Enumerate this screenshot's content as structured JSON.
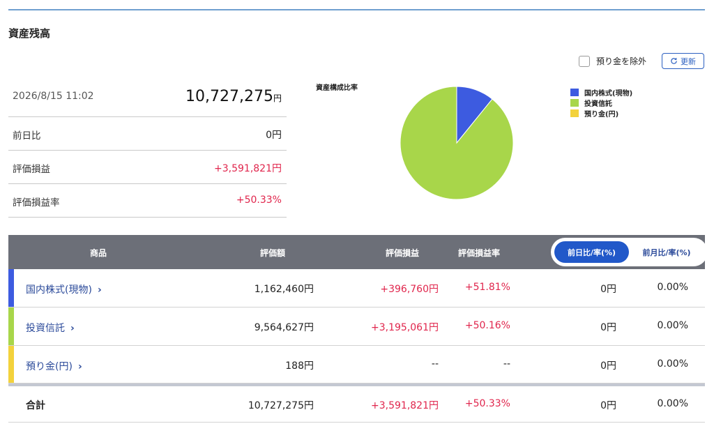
{
  "page": {
    "title": "資産残高"
  },
  "controls": {
    "exclude_label": "預り金を除外",
    "refresh_label": "更新"
  },
  "summary": {
    "timestamp": "2026/8/15 11:02",
    "total_value": "10,727,275",
    "total_unit": "円",
    "rows": [
      {
        "label": "前日比",
        "value": "0円"
      },
      {
        "label": "評価損益",
        "value": "+3,591,821円"
      },
      {
        "label": "評価損益率",
        "value": "+50.33%"
      }
    ]
  },
  "chart_data": {
    "type": "pie",
    "title": "資産構成比率",
    "legend_position": "right",
    "slices": [
      {
        "label": "国内株式(現物)",
        "value": 1162460,
        "color": "#3d5be0"
      },
      {
        "label": "投資信託",
        "value": 9564627,
        "color": "#a8d64a"
      },
      {
        "label": "預り金(円)",
        "value": 188,
        "color": "#f3d23c"
      }
    ]
  },
  "table": {
    "headers": {
      "product": "商品",
      "value": "評価額",
      "pl": "評価損益",
      "pl_rate": "評価損益率"
    },
    "toggle": {
      "active": "前日比/率(%)",
      "inactive": "前月比/率(%)"
    },
    "rows": [
      {
        "name": "国内株式(現物)",
        "value": "1,162,460円",
        "pl": "+396,760円",
        "pl_rate": "+51.81%",
        "day": "0円",
        "day_rate": "0.00%",
        "color": "#3d5be0"
      },
      {
        "name": "投資信託",
        "value": "9,564,627円",
        "pl": "+3,195,061円",
        "pl_rate": "+50.16%",
        "day": "0円",
        "day_rate": "0.00%",
        "color": "#a8d64a"
      },
      {
        "name": "預り金(円)",
        "value": "188円",
        "pl": "--",
        "pl_rate": "--",
        "day": "0円",
        "day_rate": "0.00%",
        "color": "#f3d23c"
      }
    ],
    "total": {
      "name": "合計",
      "value": "10,727,275円",
      "pl": "+3,591,821円",
      "pl_rate": "+50.33%",
      "day": "0円",
      "day_rate": "0.00%"
    }
  }
}
